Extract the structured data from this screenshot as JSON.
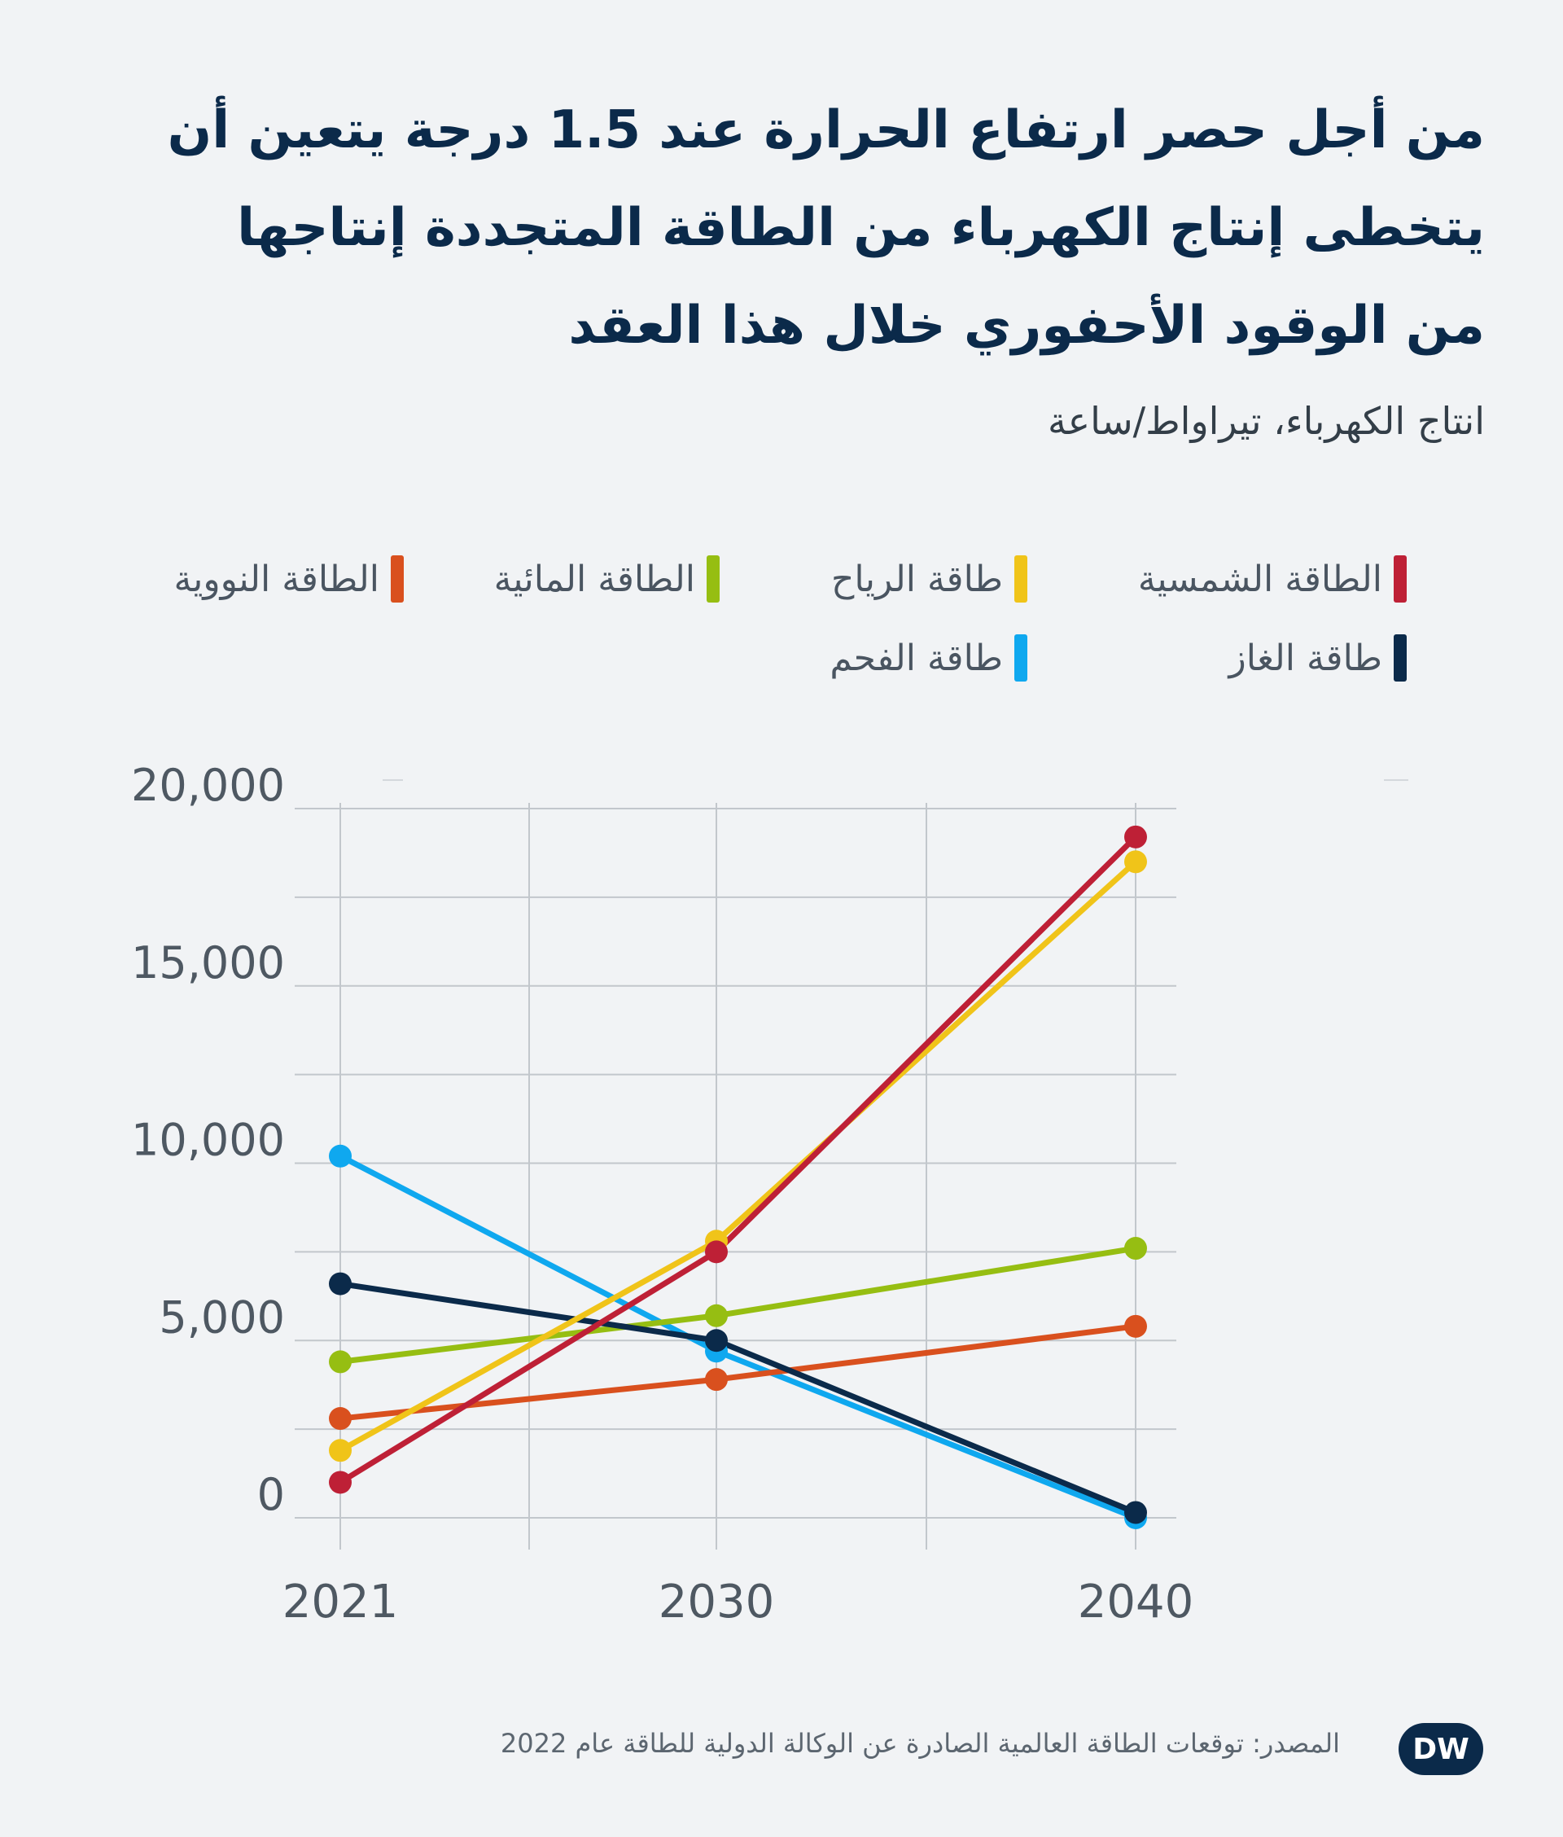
{
  "title": "من أجل حصر  ارتفاع الحرارة عند 1.5 درجة يتعين أن\nيتخطى إنتاج الكهرباء من الطاقة المتجددة إنتاجها\nمن الوقود الأحفوري خلال هذا العقد",
  "subtitle": "انتاج الكهرباء، تيراواط/ساعة",
  "source": "المصدر: توقعات الطاقة العالمية الصادرة عن الوكالة الدولية للطاقة عام 2022",
  "logo_text": "DW",
  "colors": {
    "background": "#f1f3f5",
    "title": "#0b2a4a",
    "grid": "#c2c7cc",
    "solar": "#be2036",
    "wind": "#f0c419",
    "hydro": "#96be12",
    "nuclear": "#d9501e",
    "gas": "#0b2a4a",
    "coal": "#0fa8ef"
  },
  "chart_data": {
    "type": "line",
    "x": [
      "2021",
      "2030",
      "2040"
    ],
    "ylim": [
      0,
      20000
    ],
    "y_ticks": [
      "0",
      "5,000",
      "10,000",
      "15,000",
      "20,000"
    ],
    "y_tick_values": [
      0,
      5000,
      10000,
      15000,
      20000
    ],
    "grid": true,
    "legend_position": "top",
    "series": [
      {
        "name": "الطاقة الشمسية",
        "color_key": "solar",
        "values": [
          1000,
          7500,
          19200
        ]
      },
      {
        "name": "طاقة الرياح",
        "color_key": "wind",
        "values": [
          1900,
          7800,
          18500
        ]
      },
      {
        "name": "الطاقة المائية",
        "color_key": "hydro",
        "values": [
          4400,
          5700,
          7600
        ]
      },
      {
        "name": "الطاقة النووية",
        "color_key": "nuclear",
        "values": [
          2800,
          3900,
          5400
        ]
      },
      {
        "name": "طاقة الغاز",
        "color_key": "gas",
        "values": [
          6600,
          5000,
          150
        ]
      },
      {
        "name": "طاقة الفحم",
        "color_key": "coal",
        "values": [
          10200,
          4700,
          0
        ]
      }
    ]
  }
}
